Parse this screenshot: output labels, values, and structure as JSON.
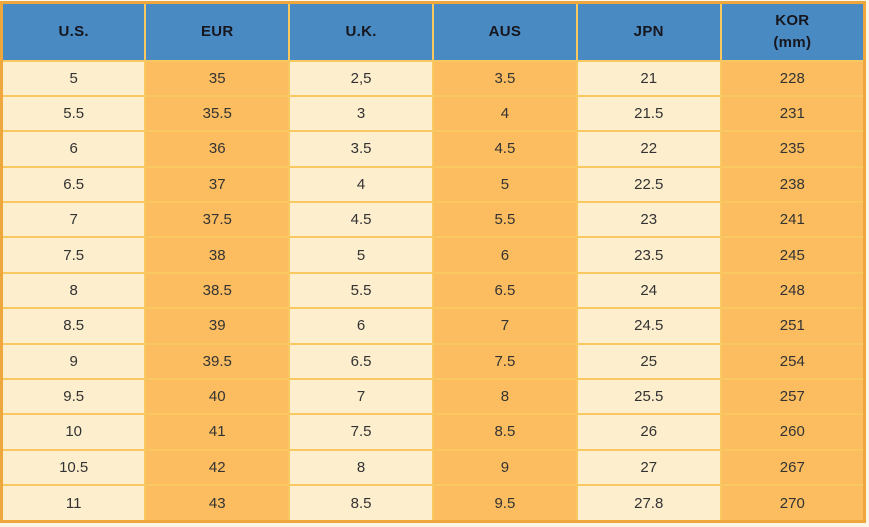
{
  "chart_data": {
    "type": "table",
    "columns": [
      "U.S.",
      "EUR",
      "U.K.",
      "AUS",
      "JPN",
      "KOR (mm)"
    ],
    "rows": [
      [
        "5",
        "35",
        "2,5",
        "3.5",
        "21",
        "228"
      ],
      [
        "5.5",
        "35.5",
        "3",
        "4",
        "21.5",
        "231"
      ],
      [
        "6",
        "36",
        "3.5",
        "4.5",
        "22",
        "235"
      ],
      [
        "6.5",
        "37",
        "4",
        "5",
        "22.5",
        "238"
      ],
      [
        "7",
        "37.5",
        "4.5",
        "5.5",
        "23",
        "241"
      ],
      [
        "7.5",
        "38",
        "5",
        "6",
        "23.5",
        "245"
      ],
      [
        "8",
        "38.5",
        "5.5",
        "6.5",
        "24",
        "248"
      ],
      [
        "8.5",
        "39",
        "6",
        "7",
        "24.5",
        "251"
      ],
      [
        "9",
        "39.5",
        "6.5",
        "7.5",
        "25",
        "254"
      ],
      [
        "9.5",
        "40",
        "7",
        "8",
        "25.5",
        "257"
      ],
      [
        "10",
        "41",
        "7.5",
        "8.5",
        "26",
        "260"
      ],
      [
        "10.5",
        "42",
        "8",
        "9",
        "27",
        "267"
      ],
      [
        "11",
        "43",
        "8.5",
        "9.5",
        "27.8",
        "270"
      ]
    ]
  },
  "table": {
    "headers": [
      {
        "id": "us",
        "lines": [
          "U.S."
        ]
      },
      {
        "id": "eur",
        "lines": [
          "EUR"
        ]
      },
      {
        "id": "uk",
        "lines": [
          "U.K."
        ]
      },
      {
        "id": "aus",
        "lines": [
          "AUS"
        ]
      },
      {
        "id": "jpn",
        "lines": [
          "JPN"
        ]
      },
      {
        "id": "kor",
        "lines": [
          "KOR",
          "(mm)"
        ]
      }
    ]
  },
  "colors": {
    "header_bg": "#4a8ac2",
    "header_text": "#16161e",
    "cell_cream": "#fdeecd",
    "cell_orange": "#fbbd60",
    "grid_line": "#f9c860",
    "outer_border": "#eea73d",
    "body_text": "#333333",
    "page_bg": "#fdf5e6"
  }
}
